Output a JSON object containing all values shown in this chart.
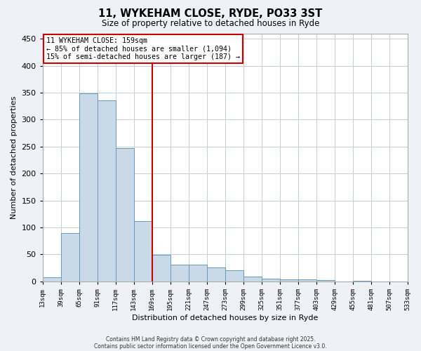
{
  "title": "11, WYKEHAM CLOSE, RYDE, PO33 3ST",
  "subtitle": "Size of property relative to detached houses in Ryde",
  "xlabel": "Distribution of detached houses by size in Ryde",
  "ylabel": "Number of detached properties",
  "bar_values": [
    7,
    89,
    349,
    336,
    247,
    112,
    49,
    31,
    31,
    25,
    21,
    9,
    5,
    4,
    3,
    2,
    0,
    1,
    0,
    0
  ],
  "categories": [
    "13sqm",
    "39sqm",
    "65sqm",
    "91sqm",
    "117sqm",
    "143sqm",
    "169sqm",
    "195sqm",
    "221sqm",
    "247sqm",
    "273sqm",
    "299sqm",
    "325sqm",
    "351sqm",
    "377sqm",
    "403sqm",
    "429sqm",
    "455sqm",
    "481sqm",
    "507sqm",
    "533sqm"
  ],
  "bar_color": "#c9d9e8",
  "bar_edge_color": "#6699bb",
  "vline_x": 6.0,
  "vline_color": "#cc0000",
  "ylim": [
    0,
    460
  ],
  "yticks": [
    0,
    50,
    100,
    150,
    200,
    250,
    300,
    350,
    400,
    450
  ],
  "annotation_title": "11 WYKEHAM CLOSE: 159sqm",
  "annotation_line1": "← 85% of detached houses are smaller (1,094)",
  "annotation_line2": "15% of semi-detached houses are larger (187) →",
  "annotation_box_color": "#ffffff",
  "annotation_box_edge": "#cc0000",
  "footer1": "Contains HM Land Registry data © Crown copyright and database right 2025.",
  "footer2": "Contains public sector information licensed under the Open Government Licence v3.0.",
  "bg_color": "#eef2f7",
  "plot_bg_color": "#ffffff",
  "grid_color": "#c5cdd8"
}
